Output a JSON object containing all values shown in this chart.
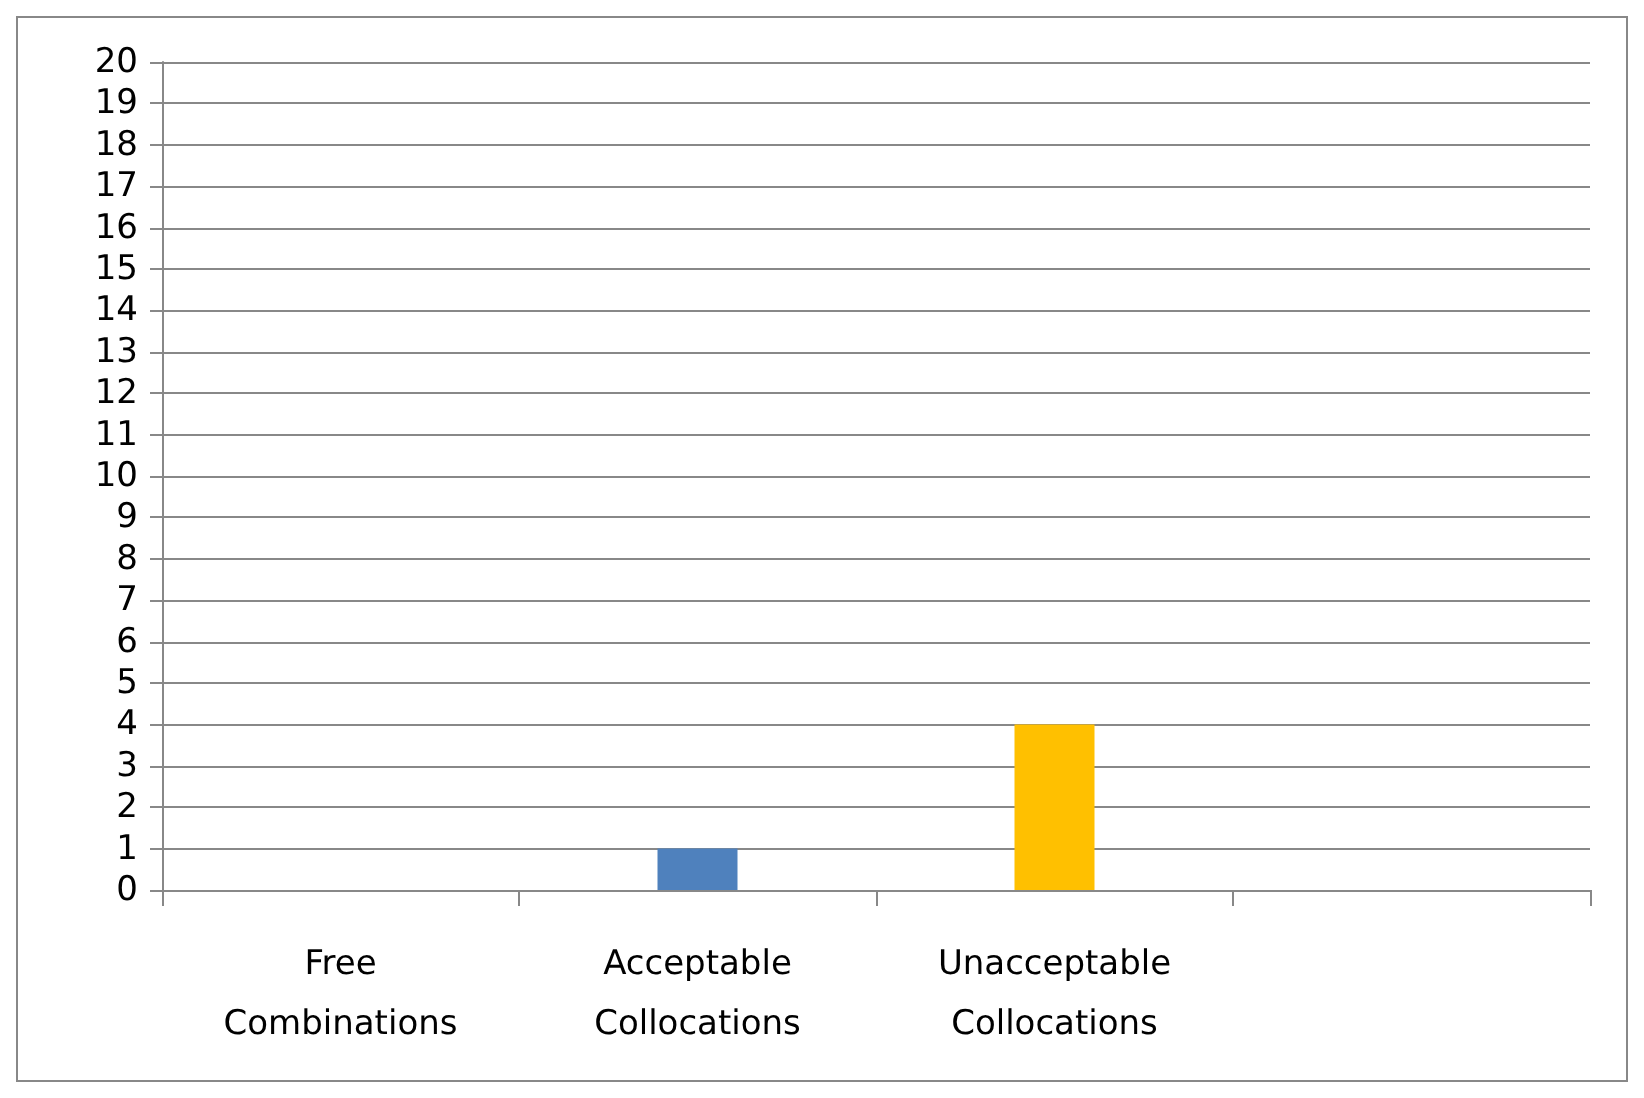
{
  "chart_data": {
    "type": "bar",
    "categories": [
      "Free Combinations",
      "Acceptable Collocations",
      "Unacceptable Collocations",
      null
    ],
    "values": [
      0,
      1,
      4,
      null
    ],
    "colors": [
      "#4f81bd",
      "#4f81bd",
      "#ffc000",
      "#4f81bd"
    ],
    "ylim": [
      0,
      20
    ],
    "yticks": [
      0,
      1,
      2,
      3,
      4,
      5,
      6,
      7,
      8,
      9,
      10,
      11,
      12,
      13,
      14,
      15,
      16,
      17,
      18,
      19,
      20
    ],
    "grid": "y"
  }
}
